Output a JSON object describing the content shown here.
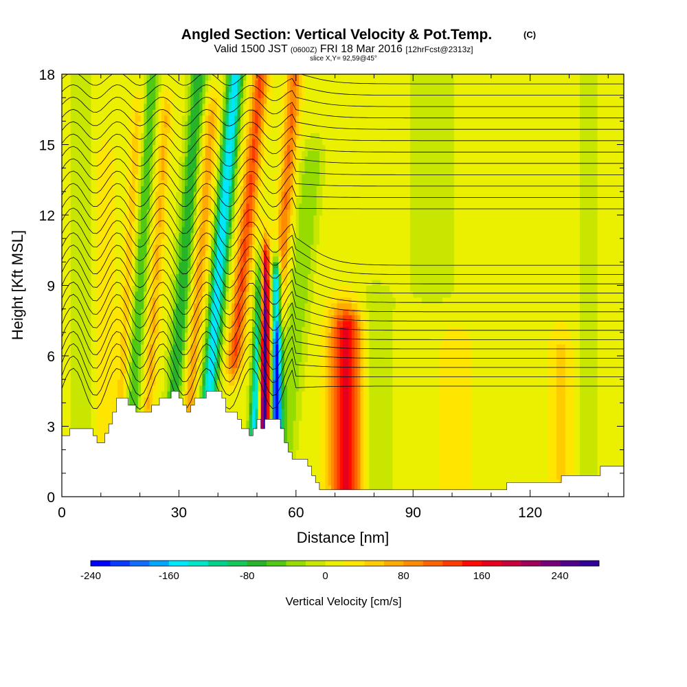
{
  "chart_data": {
    "type": "heatmap",
    "title": "Angled Section: Vertical Velocity & Pot.Temp.",
    "title_units": "(C)",
    "subtitle": {
      "valid": "Valid 1500 JST",
      "zulu": "(0600Z)",
      "date": "FRI 18 Mar 2016",
      "forecast": "[12hrFcst@2313z]"
    },
    "slice_label": "slice X,Y= 92,59@45°",
    "xlabel": "Distance [nm]",
    "ylabel": "Height [Kft MSL]",
    "xlim": [
      0,
      144
    ],
    "ylim": [
      0,
      18
    ],
    "x_ticks": [
      0,
      30,
      60,
      90,
      120
    ],
    "y_ticks": [
      0,
      3,
      6,
      9,
      12,
      15,
      18
    ],
    "colorbar": {
      "label": "Vertical Velocity [cm/s]",
      "min": -240,
      "max": 280,
      "step": 20,
      "tick_values": [
        -240,
        -160,
        -80,
        0,
        80,
        160,
        240
      ],
      "colors": [
        "#0000ff",
        "#0a3cff",
        "#0f6eff",
        "#00a6ff",
        "#00e6ff",
        "#00e6c8",
        "#00d28c",
        "#14c85a",
        "#28b428",
        "#50c814",
        "#96dc00",
        "#c8e600",
        "#ebf000",
        "#ffe600",
        "#ffcc00",
        "#ffaa00",
        "#ff8c00",
        "#ff6400",
        "#ff3c00",
        "#ff0a00",
        "#e6001e",
        "#c8003c",
        "#a0005a",
        "#780078",
        "#50008c",
        "#320096"
      ]
    },
    "velocity_features": [
      {
        "x": 20,
        "amplitude": -70,
        "width": 1.8,
        "y_top": 18,
        "y_bottom": 4,
        "tilt": 0.35
      },
      {
        "x": 17,
        "amplitude": 40,
        "width": 1.5,
        "y_top": 16,
        "y_bottom": 4,
        "tilt": 0.35
      },
      {
        "x": 24,
        "amplitude": 50,
        "width": 1.5,
        "y_top": 16,
        "y_bottom": 4,
        "tilt": 0.35
      },
      {
        "x": 31,
        "amplitude": -90,
        "width": 2.2,
        "y_top": 18,
        "y_bottom": 4,
        "tilt": 0.45
      },
      {
        "x": 35,
        "amplitude": 60,
        "width": 2.0,
        "y_top": 16,
        "y_bottom": 4,
        "tilt": 0.45
      },
      {
        "x": 40,
        "amplitude": -170,
        "width": 2.0,
        "y_top": 18,
        "y_bottom": 4,
        "tilt": 0.5
      },
      {
        "x": 46,
        "amplitude": 110,
        "width": 2.0,
        "y_top": 18,
        "y_bottom": 6,
        "tilt": 0.55
      },
      {
        "x": 52,
        "amplitude": 280,
        "width": 1.2,
        "y_top": 10,
        "y_bottom": 3,
        "tilt": 0.0
      },
      {
        "x": 55,
        "amplitude": -240,
        "width": 1.3,
        "y_top": 9,
        "y_bottom": 2.5,
        "tilt": 0.0
      },
      {
        "x": 51,
        "amplitude": -160,
        "width": 1.3,
        "y_top": 10,
        "y_bottom": 3,
        "tilt": 0.3
      },
      {
        "x": 56,
        "amplitude": 90,
        "width": 1.8,
        "y_top": 18,
        "y_bottom": 8,
        "tilt": 0.4
      },
      {
        "x": 61,
        "amplitude": -50,
        "width": 3.0,
        "y_top": 14,
        "y_bottom": 2,
        "tilt": 0.6
      },
      {
        "x": 73,
        "amplitude": 160,
        "width": 4.0,
        "y_top": 7,
        "y_bottom": 0.5,
        "tilt": 0.0
      },
      {
        "x": 80,
        "amplitude": -30,
        "width": 5.0,
        "y_top": 8,
        "y_bottom": 0.5,
        "tilt": 0.0
      },
      {
        "x": 5,
        "amplitude": -25,
        "width": 3.0,
        "y_top": 18,
        "y_bottom": 3,
        "tilt": 0.0
      },
      {
        "x": 11,
        "amplitude": 25,
        "width": 2.5,
        "y_top": 14,
        "y_bottom": 3,
        "tilt": 0.0
      },
      {
        "x": 101,
        "amplitude": 25,
        "width": 4.0,
        "y_top": 6,
        "y_bottom": 0.5,
        "tilt": 0.0
      },
      {
        "x": 128,
        "amplitude": 35,
        "width": 3.0,
        "y_top": 6,
        "y_bottom": 1,
        "tilt": 0.0
      },
      {
        "x": 135,
        "amplitude": -25,
        "width": 3.0,
        "y_top": 18,
        "y_bottom": 1,
        "tilt": 0.0
      },
      {
        "x": 95,
        "amplitude": -20,
        "width": 8.0,
        "y_top": 18,
        "y_bottom": 9,
        "tilt": 0.0
      }
    ],
    "terrain": [
      [
        0,
        2.6
      ],
      [
        2,
        2.6
      ],
      [
        2,
        2.9
      ],
      [
        8,
        2.9
      ],
      [
        8,
        2.6
      ],
      [
        9,
        2.6
      ],
      [
        9,
        2.3
      ],
      [
        11,
        2.3
      ],
      [
        11,
        2.7
      ],
      [
        12,
        2.7
      ],
      [
        12,
        3.1
      ],
      [
        13,
        3.1
      ],
      [
        13,
        3.6
      ],
      [
        14,
        3.6
      ],
      [
        14,
        4.2
      ],
      [
        17,
        4.2
      ],
      [
        17,
        3.9
      ],
      [
        19,
        3.9
      ],
      [
        19,
        3.6
      ],
      [
        23,
        3.6
      ],
      [
        23,
        3.9
      ],
      [
        25,
        3.9
      ],
      [
        25,
        4.2
      ],
      [
        28,
        4.2
      ],
      [
        28,
        4.5
      ],
      [
        30,
        4.5
      ],
      [
        30,
        4.2
      ],
      [
        31,
        4.2
      ],
      [
        31,
        3.9
      ],
      [
        32,
        3.9
      ],
      [
        32,
        3.6
      ],
      [
        33,
        3.6
      ],
      [
        33,
        3.9
      ],
      [
        34,
        3.9
      ],
      [
        34,
        4.2
      ],
      [
        37,
        4.2
      ],
      [
        37,
        4.5
      ],
      [
        41,
        4.5
      ],
      [
        41,
        4.2
      ],
      [
        42,
        4.2
      ],
      [
        42,
        3.6
      ],
      [
        45,
        3.6
      ],
      [
        45,
        3.3
      ],
      [
        46,
        3.3
      ],
      [
        46,
        2.9
      ],
      [
        48,
        2.9
      ],
      [
        48,
        2.6
      ],
      [
        49,
        2.6
      ],
      [
        49,
        2.9
      ],
      [
        50,
        2.9
      ],
      [
        50,
        3.3
      ],
      [
        51,
        3.3
      ],
      [
        51,
        2.9
      ],
      [
        52,
        2.9
      ],
      [
        52,
        3.3
      ],
      [
        56,
        3.3
      ],
      [
        56,
        2.9
      ],
      [
        57,
        2.9
      ],
      [
        57,
        2.3
      ],
      [
        58,
        2.3
      ],
      [
        58,
        1.9
      ],
      [
        59,
        1.9
      ],
      [
        59,
        1.6
      ],
      [
        63,
        1.6
      ],
      [
        63,
        1.3
      ],
      [
        64,
        1.3
      ],
      [
        64,
        0.9
      ],
      [
        65,
        0.9
      ],
      [
        65,
        0.6
      ],
      [
        66,
        0.6
      ],
      [
        66,
        0.3
      ],
      [
        114,
        0.3
      ],
      [
        114,
        0.6
      ],
      [
        128,
        0.6
      ],
      [
        128,
        0.9
      ],
      [
        138,
        0.9
      ],
      [
        138,
        1.3
      ],
      [
        144,
        1.3
      ]
    ]
  }
}
